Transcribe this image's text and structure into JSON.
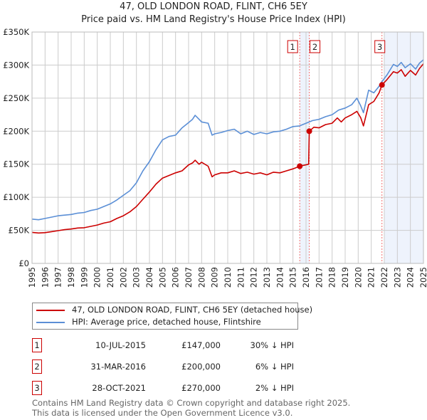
{
  "chart_data": {
    "type": "line",
    "title": "47, OLD LONDON ROAD, FLINT, CH6 5EY",
    "subtitle": "Price paid vs. HM Land Registry's House Price Index (HPI)",
    "xlim": [
      1995,
      2025
    ],
    "ylim": [
      0,
      350000
    ],
    "x_ticks": [
      "1995",
      "1996",
      "1997",
      "1998",
      "1999",
      "2000",
      "2001",
      "2002",
      "2003",
      "2004",
      "2005",
      "2006",
      "2007",
      "2008",
      "2009",
      "2010",
      "2011",
      "2012",
      "2013",
      "2014",
      "2015",
      "2016",
      "2017",
      "2018",
      "2019",
      "2020",
      "2021",
      "2022",
      "2023",
      "2024",
      "2025"
    ],
    "y_ticks": [
      {
        "v": 0,
        "label": "£0"
      },
      {
        "v": 50000,
        "label": "£50K"
      },
      {
        "v": 100000,
        "label": "£100K"
      },
      {
        "v": 150000,
        "label": "£150K"
      },
      {
        "v": 200000,
        "label": "£200K"
      },
      {
        "v": 250000,
        "label": "£250K"
      },
      {
        "v": 300000,
        "label": "£300K"
      },
      {
        "v": 350000,
        "label": "£350K"
      }
    ],
    "grid": true,
    "shaded_ranges": [
      [
        2015.52,
        2016.25
      ],
      [
        2022.0,
        2025
      ]
    ],
    "series": [
      {
        "name": "47, OLD LONDON ROAD, FLINT, CH6 5EY (detached house)",
        "color": "#cc0000",
        "points": [
          [
            1995,
            47000
          ],
          [
            1995.5,
            46000
          ],
          [
            1996,
            46500
          ],
          [
            1996.5,
            48000
          ],
          [
            1997,
            49500
          ],
          [
            1997.5,
            51000
          ],
          [
            1998,
            52000
          ],
          [
            1998.5,
            53500
          ],
          [
            1999,
            54000
          ],
          [
            1999.5,
            56000
          ],
          [
            2000,
            58000
          ],
          [
            2000.5,
            61000
          ],
          [
            2001,
            63000
          ],
          [
            2001.5,
            68000
          ],
          [
            2002,
            72000
          ],
          [
            2002.5,
            78000
          ],
          [
            2003,
            86000
          ],
          [
            2003.5,
            97000
          ],
          [
            2004,
            108000
          ],
          [
            2004.5,
            120000
          ],
          [
            2005,
            129000
          ],
          [
            2005.5,
            133000
          ],
          [
            2006,
            137000
          ],
          [
            2006.5,
            140000
          ],
          [
            2007,
            149000
          ],
          [
            2007.3,
            152000
          ],
          [
            2007.5,
            156000
          ],
          [
            2007.8,
            150000
          ],
          [
            2008,
            153000
          ],
          [
            2008.5,
            147000
          ],
          [
            2008.8,
            131000
          ],
          [
            2009,
            134000
          ],
          [
            2009.5,
            137000
          ],
          [
            2010,
            137000
          ],
          [
            2010.5,
            140000
          ],
          [
            2011,
            136000
          ],
          [
            2011.5,
            138000
          ],
          [
            2012,
            135000
          ],
          [
            2012.5,
            137000
          ],
          [
            2013,
            134000
          ],
          [
            2013.5,
            138000
          ],
          [
            2014,
            137000
          ],
          [
            2014.5,
            140000
          ],
          [
            2015,
            143000
          ],
          [
            2015.52,
            147000
          ],
          [
            2016.2,
            150000
          ],
          [
            2016.25,
            200000
          ],
          [
            2016.6,
            206000
          ],
          [
            2017,
            205000
          ],
          [
            2017.5,
            210000
          ],
          [
            2018,
            212000
          ],
          [
            2018.4,
            220000
          ],
          [
            2018.7,
            214000
          ],
          [
            2019,
            220000
          ],
          [
            2019.5,
            225000
          ],
          [
            2019.9,
            230000
          ],
          [
            2020.2,
            220000
          ],
          [
            2020.4,
            208000
          ],
          [
            2020.8,
            240000
          ],
          [
            2021.2,
            245000
          ],
          [
            2021.6,
            258000
          ],
          [
            2021.82,
            270000
          ],
          [
            2022.2,
            278000
          ],
          [
            2022.7,
            290000
          ],
          [
            2023,
            288000
          ],
          [
            2023.3,
            293000
          ],
          [
            2023.6,
            283000
          ],
          [
            2024,
            292000
          ],
          [
            2024.4,
            285000
          ],
          [
            2024.7,
            295000
          ],
          [
            2025,
            302000
          ]
        ]
      },
      {
        "name": "HPI: Average price, detached house, Flintshire",
        "color": "#5b8fd6",
        "points": [
          [
            1995,
            67000
          ],
          [
            1995.5,
            66000
          ],
          [
            1996,
            68000
          ],
          [
            1996.5,
            70000
          ],
          [
            1997,
            72000
          ],
          [
            1997.5,
            73000
          ],
          [
            1998,
            74000
          ],
          [
            1998.5,
            76000
          ],
          [
            1999,
            77000
          ],
          [
            1999.5,
            80000
          ],
          [
            2000,
            82000
          ],
          [
            2000.5,
            86000
          ],
          [
            2001,
            90000
          ],
          [
            2001.5,
            96000
          ],
          [
            2002,
            103000
          ],
          [
            2002.5,
            110000
          ],
          [
            2003,
            122000
          ],
          [
            2003.5,
            140000
          ],
          [
            2004,
            154000
          ],
          [
            2004.5,
            172000
          ],
          [
            2005,
            187000
          ],
          [
            2005.5,
            192000
          ],
          [
            2006,
            194000
          ],
          [
            2006.5,
            205000
          ],
          [
            2007,
            213000
          ],
          [
            2007.3,
            218000
          ],
          [
            2007.5,
            224000
          ],
          [
            2007.8,
            218000
          ],
          [
            2008,
            214000
          ],
          [
            2008.5,
            212000
          ],
          [
            2008.8,
            194000
          ],
          [
            2009,
            196000
          ],
          [
            2009.5,
            198000
          ],
          [
            2010,
            201000
          ],
          [
            2010.5,
            203000
          ],
          [
            2011,
            196000
          ],
          [
            2011.5,
            200000
          ],
          [
            2012,
            195000
          ],
          [
            2012.5,
            198000
          ],
          [
            2013,
            196000
          ],
          [
            2013.5,
            199000
          ],
          [
            2014,
            200000
          ],
          [
            2014.5,
            203000
          ],
          [
            2015,
            207000
          ],
          [
            2015.5,
            208000
          ],
          [
            2016,
            212000
          ],
          [
            2016.5,
            216000
          ],
          [
            2017,
            218000
          ],
          [
            2017.5,
            222000
          ],
          [
            2018,
            225000
          ],
          [
            2018.5,
            232000
          ],
          [
            2019,
            235000
          ],
          [
            2019.5,
            240000
          ],
          [
            2019.9,
            250000
          ],
          [
            2020.2,
            238000
          ],
          [
            2020.4,
            228000
          ],
          [
            2020.8,
            262000
          ],
          [
            2021.2,
            258000
          ],
          [
            2021.6,
            268000
          ],
          [
            2021.82,
            275000
          ],
          [
            2022.2,
            285000
          ],
          [
            2022.7,
            301000
          ],
          [
            2023,
            298000
          ],
          [
            2023.3,
            304000
          ],
          [
            2023.6,
            296000
          ],
          [
            2024,
            302000
          ],
          [
            2024.4,
            294000
          ],
          [
            2024.7,
            303000
          ],
          [
            2025,
            308000
          ]
        ]
      }
    ],
    "sales": [
      {
        "label": "1",
        "x": 2015.52,
        "y": 147000
      },
      {
        "label": "2",
        "x": 2016.25,
        "y": 200000
      },
      {
        "label": "3",
        "x": 2021.82,
        "y": 270000
      }
    ]
  },
  "legend": {
    "property": "47, OLD LONDON ROAD, FLINT, CH6 5EY (detached house)",
    "hpi": "HPI: Average price, detached house, Flintshire"
  },
  "transactions": [
    {
      "num": "1",
      "date": "10-JUL-2015",
      "price": "£147,000",
      "hpi": "30% ↓ HPI"
    },
    {
      "num": "2",
      "date": "31-MAR-2016",
      "price": "£200,000",
      "hpi": "6% ↓ HPI"
    },
    {
      "num": "3",
      "date": "28-OCT-2021",
      "price": "£270,000",
      "hpi": "2% ↓ HPI"
    }
  ],
  "footer": {
    "line1": "Contains HM Land Registry data © Crown copyright and database right 2025.",
    "line2": "This data is licensed under the Open Government Licence v3.0."
  }
}
